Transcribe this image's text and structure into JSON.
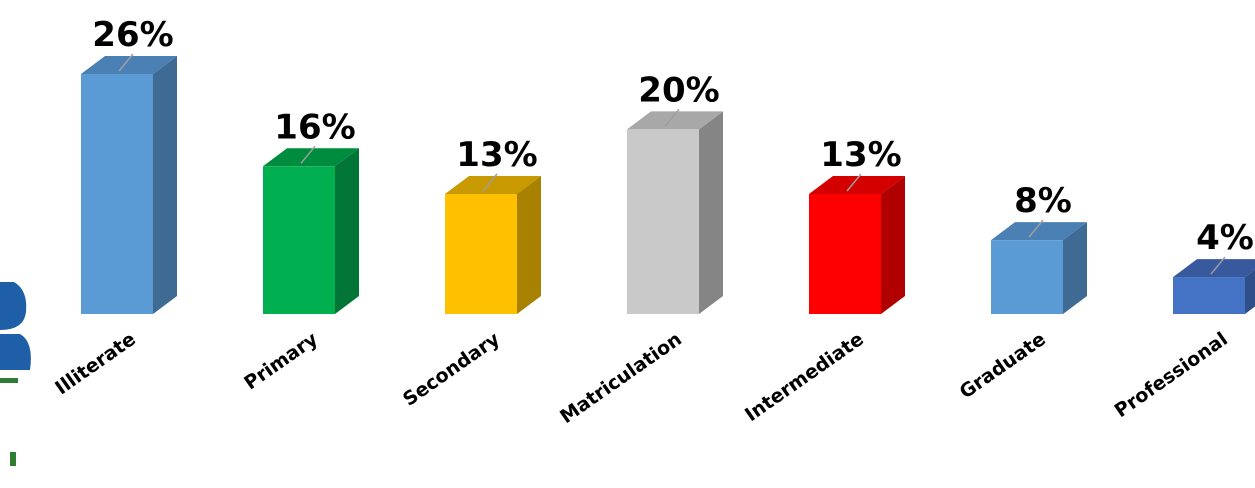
{
  "chart_data": {
    "type": "bar",
    "categories": [
      "Illiterate",
      "Primary",
      "Secondary",
      "Matriculation",
      "Intermediate",
      "Graduate",
      "Professional"
    ],
    "values": [
      26,
      16,
      13,
      20,
      13,
      8,
      4
    ],
    "value_labels": [
      "26%",
      "16%",
      "13%",
      "20%",
      "13%",
      "8%",
      "4%"
    ],
    "colors": [
      "#5b9bd5",
      "#00b050",
      "#ffc000",
      "#c9c9c9",
      "#ff0000",
      "#5b9bd5",
      "#4472c4"
    ],
    "side_colors": [
      "#3f6a93",
      "#007535",
      "#a88100",
      "#858585",
      "#b00000",
      "#3f6a93",
      "#2f4f8a"
    ],
    "top_colors": [
      "#4a80b3",
      "#008c3f",
      "#c89900",
      "#a8a8a8",
      "#d40000",
      "#4a80b3",
      "#38599e"
    ],
    "bar_style": "3d",
    "grid": false,
    "legend": "none",
    "ylim": [
      0,
      26
    ]
  },
  "logo": {
    "name": "partial-logo",
    "color_primary": "#1f5fa8",
    "color_secondary": "#2e7d32"
  }
}
